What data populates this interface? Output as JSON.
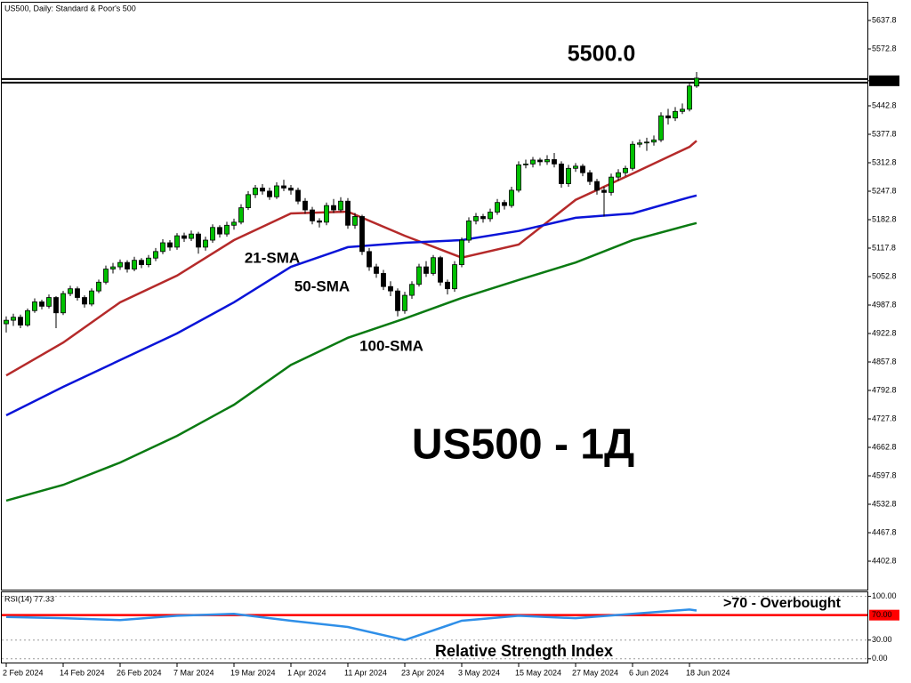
{
  "chart_data": [
    {
      "type": "candlestick",
      "title": "US500, Daily:  Standard & Poor's 500",
      "up_color": "#00c000",
      "down_color": "#000000",
      "categories": [
        "2 Feb 2024",
        null,
        null,
        null,
        null,
        null,
        null,
        null,
        "14 Feb 2024",
        null,
        null,
        null,
        null,
        null,
        null,
        null,
        "26 Feb 2024",
        null,
        null,
        null,
        null,
        null,
        null,
        null,
        "7 Mar 2024",
        null,
        null,
        null,
        null,
        null,
        null,
        null,
        "19 Mar 2024",
        null,
        null,
        null,
        null,
        null,
        null,
        null,
        "1 Apr 2024",
        null,
        null,
        null,
        null,
        null,
        null,
        null,
        "11 Apr 2024",
        null,
        null,
        null,
        null,
        null,
        null,
        null,
        "23 Apr 2024",
        null,
        null,
        null,
        null,
        null,
        null,
        null,
        "3 May 2024",
        null,
        null,
        null,
        null,
        null,
        null,
        null,
        "15 May 2024",
        null,
        null,
        null,
        null,
        null,
        null,
        null,
        "27 May 2024",
        null,
        null,
        null,
        null,
        null,
        null,
        null,
        "6 Jun 2024",
        null,
        null,
        null,
        null,
        null,
        null,
        null,
        "18 Jun 2024",
        null
      ],
      "ohlc": [
        [
          4945,
          4962,
          4925,
          4953
        ],
        [
          4953,
          4968,
          4940,
          4960
        ],
        [
          4960,
          4966,
          4935,
          4942
        ],
        [
          4942,
          4980,
          4938,
          4975
        ],
        [
          4975,
          5003,
          4970,
          4995
        ],
        [
          4995,
          5000,
          4978,
          4985
        ],
        [
          4985,
          5012,
          4980,
          5005
        ],
        [
          5005,
          5008,
          4935,
          4970
        ],
        [
          4970,
          5020,
          4965,
          5014
        ],
        [
          5014,
          5032,
          5008,
          5025
        ],
        [
          5025,
          5030,
          4998,
          5005
        ],
        [
          5005,
          5010,
          4982,
          4990
        ],
        [
          4990,
          5026,
          4985,
          5020
        ],
        [
          5020,
          5046,
          5015,
          5040
        ],
        [
          5040,
          5078,
          5035,
          5070
        ],
        [
          5070,
          5084,
          5060,
          5075
        ],
        [
          5075,
          5092,
          5068,
          5085
        ],
        [
          5085,
          5090,
          5062,
          5070
        ],
        [
          5070,
          5098,
          5065,
          5090
        ],
        [
          5090,
          5095,
          5072,
          5080
        ],
        [
          5080,
          5102,
          5074,
          5095
        ],
        [
          5095,
          5118,
          5088,
          5110
        ],
        [
          5110,
          5138,
          5104,
          5130
        ],
        [
          5130,
          5136,
          5112,
          5120
        ],
        [
          5120,
          5152,
          5114,
          5146
        ],
        [
          5146,
          5153,
          5132,
          5140
        ],
        [
          5140,
          5158,
          5134,
          5150
        ],
        [
          5150,
          5155,
          5105,
          5120
        ],
        [
          5120,
          5144,
          5112,
          5136
        ],
        [
          5136,
          5172,
          5130,
          5165
        ],
        [
          5165,
          5170,
          5142,
          5150
        ],
        [
          5150,
          5178,
          5144,
          5170
        ],
        [
          5170,
          5185,
          5160,
          5177
        ],
        [
          5177,
          5218,
          5172,
          5210
        ],
        [
          5210,
          5248,
          5205,
          5240
        ],
        [
          5240,
          5262,
          5232,
          5255
        ],
        [
          5255,
          5264,
          5240,
          5248
        ],
        [
          5248,
          5256,
          5228,
          5235
        ],
        [
          5235,
          5268,
          5230,
          5260
        ],
        [
          5260,
          5274,
          5248,
          5255
        ],
        [
          5255,
          5262,
          5240,
          5250
        ],
        [
          5250,
          5256,
          5218,
          5225
        ],
        [
          5225,
          5232,
          5196,
          5205
        ],
        [
          5205,
          5212,
          5172,
          5180
        ],
        [
          5180,
          5186,
          5165,
          5177
        ],
        [
          5177,
          5222,
          5170,
          5215
        ],
        [
          5215,
          5230,
          5198,
          5205
        ],
        [
          5205,
          5234,
          5200,
          5225
        ],
        [
          5225,
          5232,
          5162,
          5170
        ],
        [
          5170,
          5198,
          5162,
          5190
        ],
        [
          5190,
          5194,
          5102,
          5110
        ],
        [
          5110,
          5118,
          5066,
          5075
        ],
        [
          5075,
          5082,
          5050,
          5060
        ],
        [
          5060,
          5068,
          5022,
          5030
        ],
        [
          5030,
          5042,
          5008,
          5020
        ],
        [
          5020,
          5026,
          4962,
          4975
        ],
        [
          4975,
          5018,
          4968,
          5010
        ],
        [
          5010,
          5042,
          5002,
          5035
        ],
        [
          5035,
          5082,
          5030,
          5075
        ],
        [
          5075,
          5088,
          5052,
          5060
        ],
        [
          5060,
          5102,
          5055,
          5096
        ],
        [
          5096,
          5100,
          5032,
          5040
        ],
        [
          5040,
          5046,
          5012,
          5025
        ],
        [
          5025,
          5088,
          5018,
          5080
        ],
        [
          5080,
          5142,
          5074,
          5136
        ],
        [
          5136,
          5188,
          5130,
          5180
        ],
        [
          5180,
          5198,
          5172,
          5190
        ],
        [
          5190,
          5196,
          5176,
          5185
        ],
        [
          5185,
          5208,
          5178,
          5200
        ],
        [
          5200,
          5230,
          5194,
          5222
        ],
        [
          5222,
          5228,
          5206,
          5215
        ],
        [
          5215,
          5258,
          5210,
          5250
        ],
        [
          5250,
          5316,
          5245,
          5308
        ],
        [
          5308,
          5320,
          5300,
          5310
        ],
        [
          5310,
          5326,
          5302,
          5319
        ],
        [
          5319,
          5324,
          5306,
          5315
        ],
        [
          5315,
          5330,
          5308,
          5320
        ],
        [
          5320,
          5335,
          5302,
          5310
        ],
        [
          5310,
          5316,
          5256,
          5265
        ],
        [
          5265,
          5308,
          5258,
          5300
        ],
        [
          5300,
          5312,
          5292,
          5305
        ],
        [
          5305,
          5310,
          5282,
          5290
        ],
        [
          5290,
          5296,
          5262,
          5270
        ],
        [
          5270,
          5276,
          5240,
          5250
        ],
        [
          5250,
          5258,
          5190,
          5245
        ],
        [
          5245,
          5288,
          5238,
          5280
        ],
        [
          5280,
          5298,
          5272,
          5290
        ],
        [
          5290,
          5306,
          5282,
          5300
        ],
        [
          5300,
          5362,
          5295,
          5355
        ],
        [
          5355,
          5366,
          5348,
          5358
        ],
        [
          5358,
          5370,
          5340,
          5360
        ],
        [
          5360,
          5375,
          5352,
          5365
        ],
        [
          5365,
          5428,
          5360,
          5420
        ],
        [
          5420,
          5436,
          5400,
          5415
        ],
        [
          5415,
          5440,
          5408,
          5430
        ],
        [
          5430,
          5448,
          5424,
          5435
        ],
        [
          5435,
          5496,
          5430,
          5488
        ],
        [
          5488,
          5520,
          5484,
          5506
        ]
      ],
      "series": [
        {
          "name": "21-SMA",
          "color": "#b52a2a",
          "x": [
            0,
            8,
            16,
            24,
            32,
            40,
            48,
            56,
            64,
            72,
            80,
            88,
            96,
            97
          ],
          "values": [
            4827,
            4902,
            4994,
            5055,
            5136,
            5197,
            5201,
            5146,
            5096,
            5126,
            5228,
            5288,
            5349,
            5363
          ]
        },
        {
          "name": "50-SMA",
          "color": "#0a14d8",
          "x": [
            0,
            8,
            16,
            24,
            32,
            40,
            48,
            56,
            64,
            72,
            80,
            88,
            96,
            97
          ],
          "values": [
            4736,
            4801,
            4862,
            4923,
            4994,
            5075,
            5120,
            5130,
            5136,
            5157,
            5187,
            5197,
            5234,
            5238
          ]
        },
        {
          "name": "100-SMA",
          "color": "#0a7a12",
          "x": [
            0,
            8,
            16,
            24,
            32,
            40,
            48,
            56,
            64,
            72,
            80,
            88,
            96,
            97
          ],
          "values": [
            4541,
            4577,
            4628,
            4689,
            4760,
            4851,
            4913,
            4957,
            5004,
            5045,
            5085,
            5136,
            5171,
            5175
          ]
        }
      ],
      "level": {
        "value": 5500,
        "label": "5500.0"
      },
      "annotation": "US500 - 1Д",
      "ylim": [
        4337.8,
        5678.4
      ],
      "yticks": [
        5637.8,
        5572.8,
        {
          "value": 5500,
          "label": "5500.0"
        },
        5442.8,
        5377.8,
        5312.8,
        5247.8,
        5182.8,
        5117.8,
        5052.8,
        4987.8,
        4922.8,
        4857.8,
        4792.8,
        4727.8,
        4662.8,
        4597.8,
        4532.8,
        4467.8,
        4402.8
      ]
    },
    {
      "type": "line",
      "title": "RSI(14) 77.33",
      "color": "#2f8fe8",
      "x": [
        0,
        8,
        16,
        24,
        32,
        40,
        48,
        56,
        64,
        72,
        80,
        88,
        96,
        97
      ],
      "values": [
        67,
        65,
        62,
        69,
        72,
        61,
        51,
        30,
        61,
        69,
        65,
        72,
        79,
        77.33
      ],
      "level": {
        "value": 70,
        "label": "70.00",
        "color": "#ff0000"
      },
      "annotations": [
        ">70 - Overbought",
        "Relative Strength Index"
      ],
      "ylim": [
        -6,
        108
      ],
      "yticks": [
        {
          "value": 100,
          "label": "100.00"
        },
        {
          "value": 30,
          "label": "30.00"
        },
        {
          "value": 0,
          "label": "0.00"
        }
      ]
    }
  ]
}
